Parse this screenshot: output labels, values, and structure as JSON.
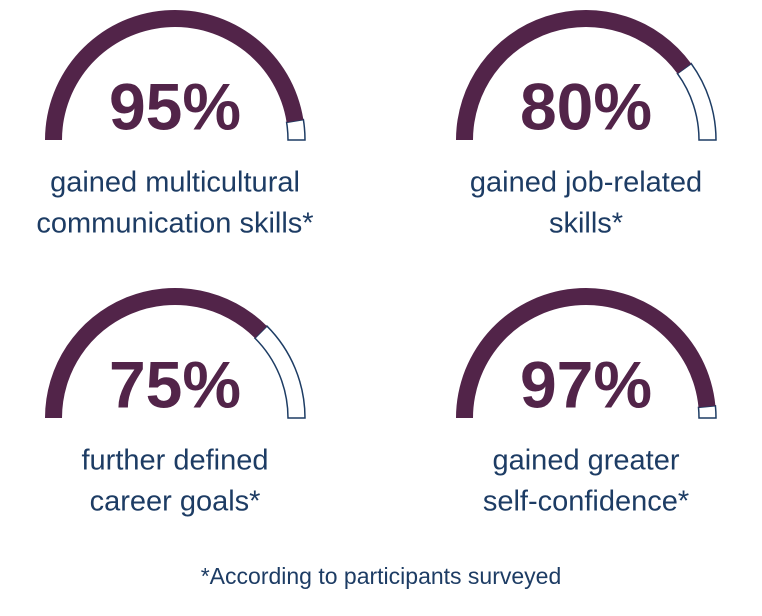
{
  "chart_data": [
    {
      "type": "gauge",
      "values": [
        95
      ],
      "value_labels": [
        "95%"
      ],
      "ylim": [
        0,
        100
      ],
      "color": "#522449",
      "track_color": "#1d3c64",
      "caption": [
        "gained multicultural",
        "communication skills*"
      ]
    },
    {
      "type": "gauge",
      "values": [
        80
      ],
      "value_labels": [
        "80%"
      ],
      "ylim": [
        0,
        100
      ],
      "color": "#522449",
      "track_color": "#1d3c64",
      "caption": [
        "gained job-related",
        "skills*"
      ]
    },
    {
      "type": "gauge",
      "values": [
        75
      ],
      "value_labels": [
        "75%"
      ],
      "ylim": [
        0,
        100
      ],
      "color": "#522449",
      "track_color": "#1d3c64",
      "caption": [
        "further defined",
        "career goals*"
      ]
    },
    {
      "type": "gauge",
      "values": [
        97
      ],
      "value_labels": [
        "97%"
      ],
      "ylim": [
        0,
        100
      ],
      "color": "#522449",
      "track_color": "#1d3c64",
      "caption": [
        "gained greater",
        "self-confidence*"
      ]
    }
  ],
  "footnote": "*According to participants surveyed"
}
